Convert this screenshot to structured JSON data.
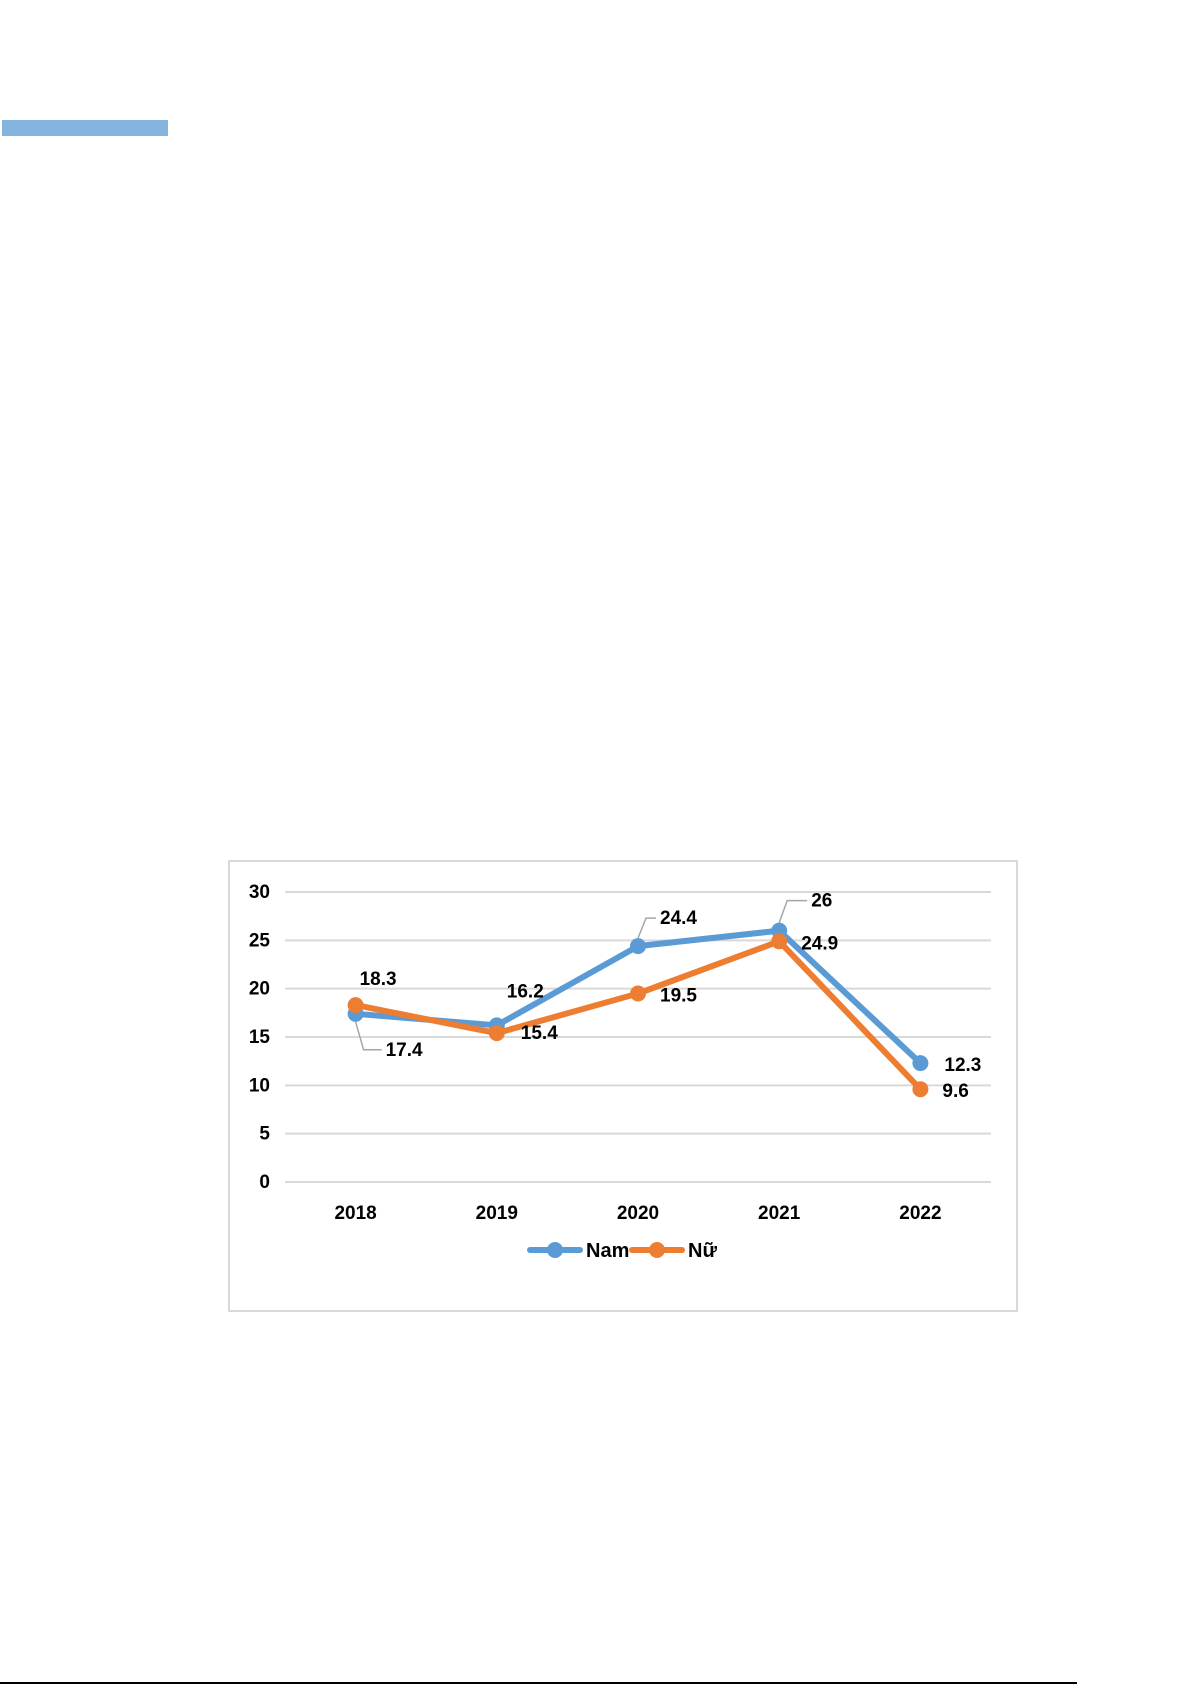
{
  "page": {
    "accent_bar_color": "#85b5df",
    "rule_color": "#000000"
  },
  "chart_data": {
    "type": "line",
    "categories": [
      "2018",
      "2019",
      "2020",
      "2021",
      "2022"
    ],
    "series": [
      {
        "name": "Nam",
        "values": [
          17.4,
          16.2,
          24.4,
          26,
          12.3
        ],
        "color": "#5b9bd5"
      },
      {
        "name": "Nữ",
        "values": [
          18.3,
          15.4,
          19.5,
          24.9,
          9.6
        ],
        "color": "#ed7d31"
      }
    ],
    "data_labels": {
      "Nam": [
        "17.4",
        "16.2",
        "24.4",
        "26",
        "12.3"
      ],
      "Nữ": [
        "18.3",
        "15.4",
        "19.5",
        "24.9",
        "9.6"
      ]
    },
    "ylim": [
      0,
      30
    ],
    "yticks": [
      0,
      5,
      10,
      15,
      20,
      25,
      30
    ],
    "title": "",
    "xlabel": "",
    "ylabel": "",
    "grid": true,
    "legend": "bottom-center"
  }
}
